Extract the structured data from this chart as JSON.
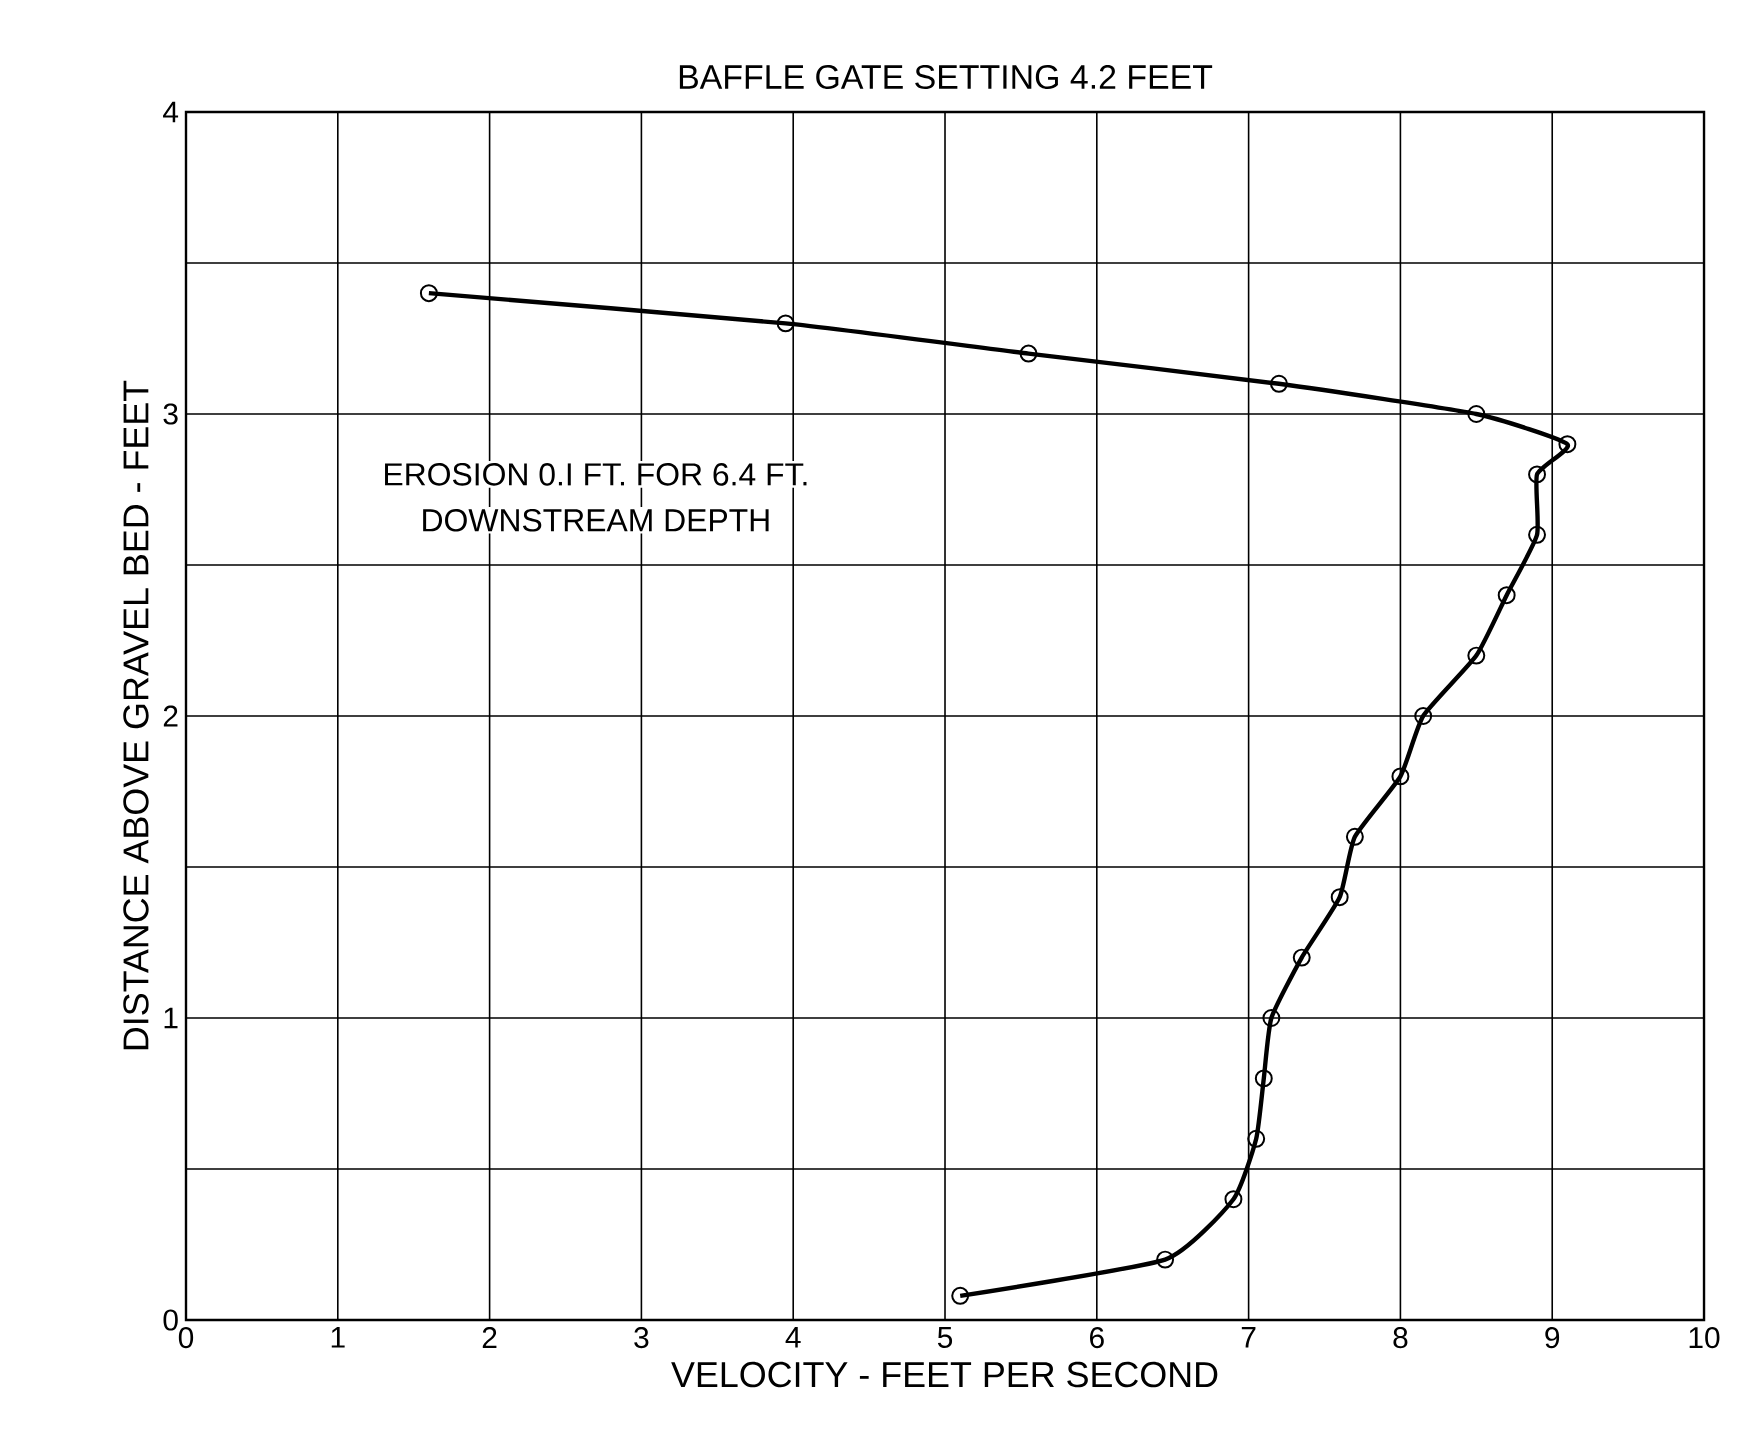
{
  "chart_data": {
    "type": "line",
    "title": "BAFFLE GATE SETTING 4.2 FEET",
    "xlabel": "VELOCITY - FEET PER SECOND",
    "ylabel": "DISTANCE ABOVE GRAVEL BED - FEET",
    "annotations": [
      "EROSION 0.I FT. FOR 6.4 FT.",
      "DOWNSTREAM DEPTH"
    ],
    "x": [
      1.6,
      3.95,
      5.55,
      7.2,
      8.5,
      9.1,
      8.9,
      8.9,
      8.7,
      8.5,
      8.15,
      8.0,
      7.7,
      7.6,
      7.35,
      7.15,
      7.1,
      7.05,
      6.9,
      6.45,
      5.1
    ],
    "series": [
      {
        "color": "#000000",
        "values": [
          3.4,
          3.3,
          3.2,
          3.1,
          3.0,
          2.9,
          2.8,
          2.6,
          2.4,
          2.2,
          2.0,
          1.8,
          1.6,
          1.4,
          1.2,
          1.0,
          0.8,
          0.6,
          0.4,
          0.2,
          0.08
        ]
      }
    ],
    "xlim": [
      0,
      10
    ],
    "ylim": [
      0,
      4
    ],
    "xticks": [
      0,
      1,
      2,
      3,
      4,
      5,
      6,
      7,
      8,
      9,
      10
    ],
    "yticks": [
      0,
      {
        "value": 0.5,
        "label": null
      },
      1,
      {
        "value": 1.5,
        "label": null
      },
      2,
      {
        "value": 2.5,
        "label": null
      },
      3,
      {
        "value": 3.5,
        "label": null
      },
      4
    ],
    "grid": true,
    "marker": "circle",
    "line_style": "solid"
  }
}
